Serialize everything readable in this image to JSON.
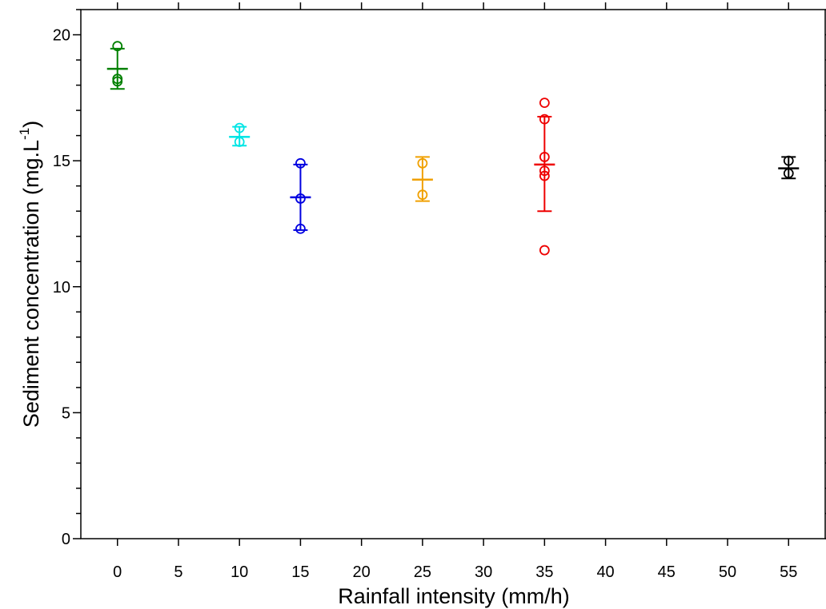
{
  "chart_data": {
    "type": "scatter",
    "xlabel": "Rainfall intensity (mm/h)",
    "ylabel": {
      "prefix": "Sediment concentration (mg.L",
      "superscript": "-1",
      "suffix": ")"
    },
    "xlim": [
      -3,
      58
    ],
    "ylim": [
      0,
      21
    ],
    "x_ticks": [
      0,
      5,
      10,
      15,
      20,
      25,
      30,
      35,
      40,
      45,
      50,
      55
    ],
    "y_ticks": [
      0,
      5,
      10,
      15,
      20
    ],
    "y_minor_step": 1,
    "grid": false,
    "legend": "none",
    "series": [
      {
        "x": 0,
        "color": "#008000",
        "points": [
          19.55,
          18.25,
          18.15
        ],
        "mean": 18.65,
        "sd_low": 17.85,
        "sd_high": 19.45
      },
      {
        "x": 10,
        "color": "#00e5e5",
        "points": [
          16.3,
          15.75
        ],
        "mean": 15.95,
        "sd_low": 15.6,
        "sd_high": 16.35
      },
      {
        "x": 15,
        "color": "#0000e0",
        "points": [
          14.9,
          13.5,
          12.3
        ],
        "mean": 13.55,
        "sd_low": 12.25,
        "sd_high": 14.85
      },
      {
        "x": 25,
        "color": "#f0a000",
        "points": [
          14.9,
          13.65
        ],
        "mean": 14.25,
        "sd_low": 13.4,
        "sd_high": 15.15
      },
      {
        "x": 35,
        "color": "#ee0000",
        "points": [
          17.3,
          16.65,
          15.15,
          14.6,
          14.4,
          11.45
        ],
        "mean": 14.85,
        "sd_low": 13.0,
        "sd_high": 16.75
      },
      {
        "x": 55,
        "color": "#000000",
        "points": [
          15.0,
          14.5
        ],
        "mean": 14.7,
        "sd_low": 14.3,
        "sd_high": 15.15
      }
    ]
  }
}
